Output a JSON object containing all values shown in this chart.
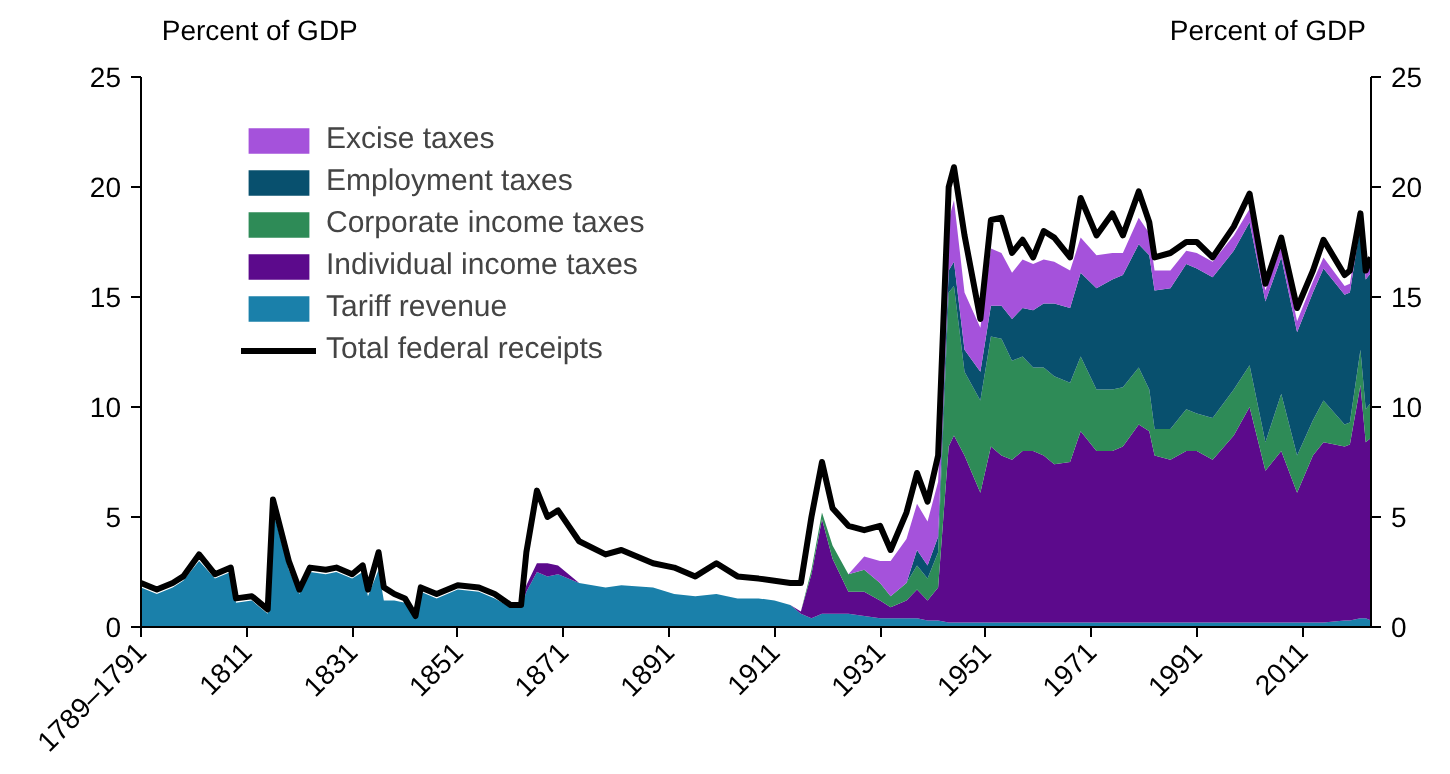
{
  "chart_data": {
    "type": "area",
    "stacked": true,
    "ylabel": "Percent of GDP",
    "y2label": "Percent of GDP",
    "x": [
      1791,
      1794,
      1797,
      1799,
      1802,
      1805,
      1808,
      1809,
      1812,
      1815,
      1816,
      1819,
      1821,
      1823,
      1826,
      1828,
      1831,
      1833,
      1834,
      1836,
      1837,
      1839,
      1841,
      1843,
      1844,
      1847,
      1851,
      1855,
      1858,
      1861,
      1863,
      1864,
      1866,
      1868,
      1870,
      1874,
      1879,
      1882,
      1888,
      1892,
      1896,
      1900,
      1904,
      1908,
      1911,
      1914,
      1916,
      1918,
      1920,
      1922,
      1925,
      1928,
      1931,
      1933,
      1936,
      1938,
      1940,
      1942,
      1944,
      1945,
      1947,
      1950,
      1952,
      1954,
      1956,
      1958,
      1960,
      1962,
      1964,
      1967,
      1969,
      1972,
      1975,
      1977,
      1980,
      1982,
      1983,
      1986,
      1989,
      1991,
      1994,
      1998,
      2001,
      2004,
      2007,
      2010,
      2013,
      2015,
      2019,
      2020,
      2022,
      2023,
      2024
    ],
    "xlim": [
      1791,
      2024
    ],
    "xticks": [
      {
        "value": 1791,
        "label": "1789–1791"
      },
      1811,
      1831,
      1851,
      1871,
      1891,
      1911,
      1931,
      1951,
      1971,
      1991,
      2011
    ],
    "ylim": [
      0,
      25
    ],
    "yticks": [
      0,
      5,
      10,
      15,
      20,
      25
    ],
    "y2lim": [
      0,
      25
    ],
    "y2ticks": [
      0,
      5,
      10,
      15,
      20,
      25
    ],
    "grid": false,
    "legend": "top left",
    "series": [
      {
        "name": "Tariff revenue",
        "color": "#1a80aa",
        "values": [
          1.8,
          1.5,
          1.8,
          2.1,
          3.0,
          2.2,
          2.5,
          1.1,
          1.2,
          0.6,
          5.3,
          2.6,
          1.5,
          2.5,
          2.4,
          2.5,
          2.2,
          2.5,
          1.4,
          2.6,
          1.2,
          1.2,
          1.1,
          0.4,
          1.6,
          1.3,
          1.7,
          1.6,
          1.3,
          0.9,
          0.9,
          1.6,
          2.5,
          2.3,
          2.4,
          2.0,
          1.8,
          1.9,
          1.8,
          1.5,
          1.4,
          1.5,
          1.3,
          1.3,
          1.2,
          1.0,
          0.6,
          0.4,
          0.6,
          0.6,
          0.6,
          0.5,
          0.4,
          0.4,
          0.4,
          0.4,
          0.3,
          0.3,
          0.2,
          0.2,
          0.2,
          0.2,
          0.2,
          0.2,
          0.2,
          0.2,
          0.2,
          0.2,
          0.2,
          0.2,
          0.2,
          0.2,
          0.2,
          0.2,
          0.2,
          0.2,
          0.2,
          0.2,
          0.2,
          0.2,
          0.2,
          0.2,
          0.2,
          0.2,
          0.2,
          0.2,
          0.2,
          0.2,
          0.3,
          0.3,
          0.4,
          0.4,
          0.3
        ]
      },
      {
        "name": "Individual income taxes",
        "color": "#5c0a8c",
        "values": [
          0,
          0,
          0,
          0,
          0,
          0,
          0,
          0,
          0,
          0,
          0,
          0,
          0,
          0,
          0,
          0,
          0,
          0,
          0,
          0,
          0,
          0,
          0,
          0,
          0,
          0,
          0,
          0,
          0,
          0,
          0,
          0.3,
          0.4,
          0.6,
          0.4,
          0,
          0,
          0,
          0,
          0,
          0,
          0,
          0,
          0,
          0,
          0,
          0.1,
          2.0,
          4.3,
          2.5,
          1.0,
          1.1,
          0.8,
          0.5,
          0.8,
          1.3,
          0.9,
          1.5,
          8.0,
          8.5,
          7.6,
          5.9,
          8.0,
          7.6,
          7.4,
          7.8,
          7.8,
          7.6,
          7.2,
          7.3,
          8.7,
          7.8,
          7.8,
          8.0,
          9.0,
          8.7,
          7.6,
          7.4,
          7.8,
          7.8,
          7.4,
          8.5,
          9.8,
          6.9,
          7.8,
          5.9,
          7.6,
          8.2,
          7.9,
          8.0,
          10.6,
          8.0,
          8.3
        ]
      },
      {
        "name": "Corporate income taxes",
        "color": "#2e8b57",
        "values": [
          0,
          0,
          0,
          0,
          0,
          0,
          0,
          0,
          0,
          0,
          0,
          0,
          0,
          0,
          0,
          0,
          0,
          0,
          0,
          0,
          0,
          0,
          0,
          0,
          0,
          0,
          0,
          0,
          0,
          0,
          0,
          0,
          0,
          0,
          0,
          0,
          0,
          0,
          0,
          0,
          0,
          0,
          0,
          0,
          0,
          0,
          0,
          0.2,
          0.3,
          0.6,
          0.8,
          1.0,
          0.8,
          0.5,
          0.8,
          1.1,
          1.0,
          1.6,
          7.0,
          6.8,
          3.8,
          4.2,
          5.0,
          5.3,
          4.5,
          4.3,
          3.8,
          4.0,
          4.0,
          3.6,
          3.4,
          2.8,
          2.8,
          2.7,
          2.6,
          1.9,
          1.2,
          1.4,
          1.9,
          1.7,
          1.9,
          2.1,
          1.9,
          1.3,
          2.6,
          1.7,
          1.6,
          1.9,
          1.0,
          1.0,
          1.6,
          1.5,
          1.6
        ]
      },
      {
        "name": "Employment taxes",
        "color": "#08506e",
        "values": [
          0,
          0,
          0,
          0,
          0,
          0,
          0,
          0,
          0,
          0,
          0,
          0,
          0,
          0,
          0,
          0,
          0,
          0,
          0,
          0,
          0,
          0,
          0,
          0,
          0,
          0,
          0,
          0,
          0,
          0,
          0,
          0,
          0,
          0,
          0,
          0,
          0,
          0,
          0,
          0,
          0,
          0,
          0,
          0,
          0,
          0,
          0,
          0,
          0,
          0,
          0,
          0,
          0,
          0,
          0,
          0.7,
          0.6,
          0.7,
          1.0,
          1.1,
          1.0,
          1.3,
          1.4,
          1.5,
          1.9,
          2.2,
          2.6,
          2.9,
          3.3,
          3.4,
          3.8,
          4.6,
          5.0,
          5.1,
          5.6,
          6.1,
          6.3,
          6.4,
          6.6,
          6.6,
          6.4,
          6.3,
          6.5,
          6.4,
          6.2,
          5.6,
          5.8,
          6.0,
          5.9,
          5.9,
          5.7,
          5.9,
          5.9
        ]
      },
      {
        "name": "Excise taxes",
        "color": "#a552db",
        "values": [
          0,
          0,
          0,
          0,
          0,
          0,
          0,
          0,
          0,
          0,
          0,
          0,
          0,
          0,
          0,
          0,
          0,
          0,
          0,
          0,
          0,
          0,
          0,
          0,
          0,
          0,
          0,
          0,
          0,
          0,
          0,
          0,
          0,
          0,
          0,
          0,
          0,
          0,
          0,
          0,
          0,
          0,
          0,
          0,
          0,
          0,
          0,
          0,
          0,
          0,
          0,
          0.6,
          1.0,
          1.6,
          2.0,
          2.1,
          2.0,
          2.5,
          2.3,
          2.8,
          2.6,
          2.0,
          2.6,
          2.4,
          2.1,
          2.2,
          2.1,
          2.0,
          1.9,
          1.7,
          1.6,
          1.5,
          1.2,
          1.0,
          1.2,
          1.0,
          0.9,
          0.8,
          0.6,
          0.7,
          0.7,
          0.7,
          0.6,
          0.5,
          0.5,
          0.5,
          0.5,
          0.5,
          0.4,
          0.4,
          0.3,
          0.3,
          0.3
        ]
      },
      {
        "name": "Total federal receipts",
        "type": "line",
        "color": "#000000",
        "values": [
          2.0,
          1.7,
          2.0,
          2.3,
          3.3,
          2.4,
          2.7,
          1.3,
          1.4,
          0.8,
          5.8,
          3.0,
          1.7,
          2.7,
          2.6,
          2.7,
          2.4,
          2.8,
          1.7,
          3.4,
          1.8,
          1.5,
          1.3,
          0.5,
          1.8,
          1.5,
          1.9,
          1.8,
          1.5,
          1.0,
          1.0,
          3.4,
          6.2,
          5.0,
          5.3,
          3.9,
          3.3,
          3.5,
          2.9,
          2.7,
          2.3,
          2.9,
          2.3,
          2.2,
          2.1,
          2.0,
          2.0,
          5.0,
          7.5,
          5.4,
          4.6,
          4.4,
          4.6,
          3.5,
          5.2,
          7.0,
          5.7,
          7.8,
          20.0,
          20.9,
          17.8,
          14.0,
          18.5,
          18.6,
          17.0,
          17.6,
          16.8,
          18.0,
          17.7,
          16.8,
          19.5,
          17.8,
          18.8,
          17.8,
          19.8,
          18.4,
          16.8,
          17.0,
          17.5,
          17.5,
          16.8,
          18.2,
          19.7,
          15.6,
          17.7,
          14.5,
          16.2,
          17.6,
          16.0,
          16.2,
          18.8,
          16.2,
          16.8
        ]
      }
    ]
  }
}
